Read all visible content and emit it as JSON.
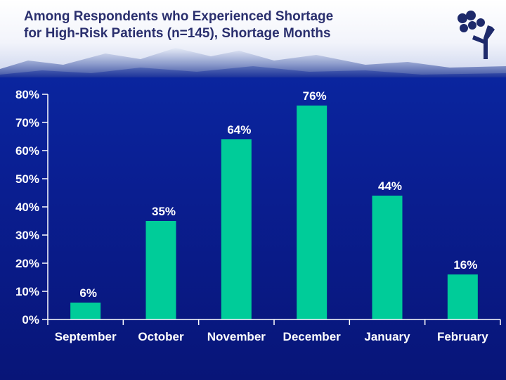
{
  "slide": {
    "title": "Among Respondents who Experienced Shortage\nfor High-Risk Patients (n=145), Shortage Months"
  },
  "colors": {
    "bar": "#00cc99",
    "background": "#0a1f93",
    "title": "#2a2f6e",
    "axis": "#ffffff"
  },
  "chart_data": {
    "type": "bar",
    "title": "",
    "xlabel": "",
    "ylabel": "",
    "categories": [
      "September",
      "October",
      "November",
      "December",
      "January",
      "February"
    ],
    "values": [
      6,
      35,
      64,
      76,
      44,
      16
    ],
    "value_labels": [
      "6%",
      "35%",
      "64%",
      "76%",
      "44%",
      "16%"
    ],
    "ylim": [
      0,
      80
    ],
    "yticks": [
      "0%",
      "10%",
      "20%",
      "30%",
      "40%",
      "50%",
      "60%",
      "70%",
      "80%"
    ],
    "grid": false,
    "legend": "none"
  }
}
